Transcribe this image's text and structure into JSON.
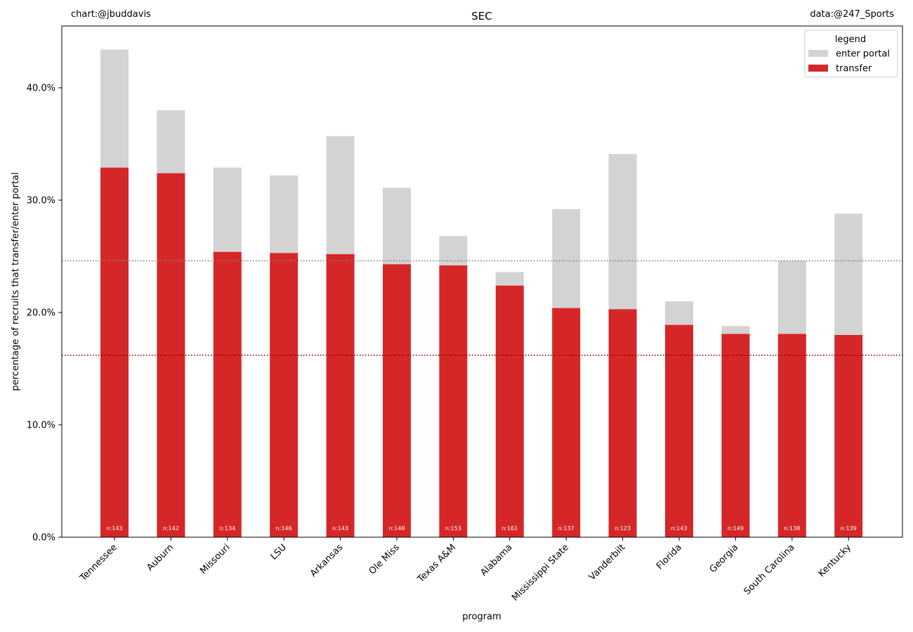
{
  "credits": {
    "chart": "chart:@jbuddavis",
    "data": "data:@247_Sports"
  },
  "chart_data": {
    "type": "bar",
    "stacked": true,
    "title": "SEC",
    "xlabel": "program",
    "ylabel": "percentage of recruits that transfer/enter portal",
    "ylim": [
      0,
      45.5
    ],
    "yticks": [
      0,
      10,
      20,
      30,
      40
    ],
    "ytick_labels": [
      "0.0%",
      "10.0%",
      "20.0%",
      "30.0%",
      "40.0%"
    ],
    "categories": [
      "Tennessee",
      "Auburn",
      "Missouri",
      "LSU",
      "Arkansas",
      "Ole Miss",
      "Texas A&M",
      "Alabama",
      "Mississippi State",
      "Vanderbilt",
      "Florida",
      "Georgia",
      "South Carolina",
      "Kentucky"
    ],
    "sample_labels": [
      "n:143",
      "n:142",
      "n:134",
      "n:146",
      "n:143",
      "n:148",
      "n:153",
      "n:161",
      "n:137",
      "n:123",
      "n:143",
      "n:149",
      "n:138",
      "n:139"
    ],
    "series": [
      {
        "name": "transfer",
        "color": "#d62728",
        "values": [
          32.9,
          32.4,
          25.4,
          25.3,
          25.2,
          24.3,
          24.2,
          22.4,
          20.4,
          20.3,
          18.9,
          18.1,
          18.1,
          18.0
        ]
      },
      {
        "name": "enter portal",
        "color": "#d3d3d3",
        "values": [
          10.5,
          5.6,
          7.5,
          6.9,
          10.5,
          6.8,
          2.6,
          1.2,
          8.8,
          13.8,
          2.1,
          0.7,
          6.5,
          10.8
        ]
      }
    ],
    "reference_lines": [
      {
        "value": 24.6,
        "color": "#808080",
        "style": "dotted"
      },
      {
        "value": 16.2,
        "color": "#8b0000",
        "style": "dotted"
      }
    ],
    "legend": {
      "title": "legend",
      "placement": "top-right",
      "entries": [
        {
          "label": "enter portal",
          "color": "#d3d3d3"
        },
        {
          "label": "transfer",
          "color": "#d62728"
        }
      ]
    },
    "grid": false
  }
}
